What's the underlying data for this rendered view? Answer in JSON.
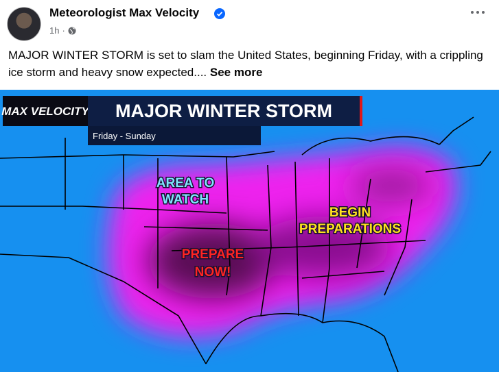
{
  "post": {
    "author": "Meteorologist Max Velocity",
    "time": "1h",
    "text": "MAJOR WINTER STORM is set to slam the United States, beginning Friday, with a crippling ice storm and heavy snow expected....",
    "see_more": "See more",
    "image": {
      "logo": "MAX VELOCITY",
      "title": "MAJOR WINTER STORM",
      "subtitle": "Friday - Sunday",
      "labels": {
        "area_to_watch": [
          "AREA TO",
          "WATCH"
        ],
        "begin_preparations": [
          "BEGIN",
          "PREPARATIONS"
        ],
        "prepare_now": [
          "PREPARE",
          "NOW!"
        ]
      }
    }
  }
}
